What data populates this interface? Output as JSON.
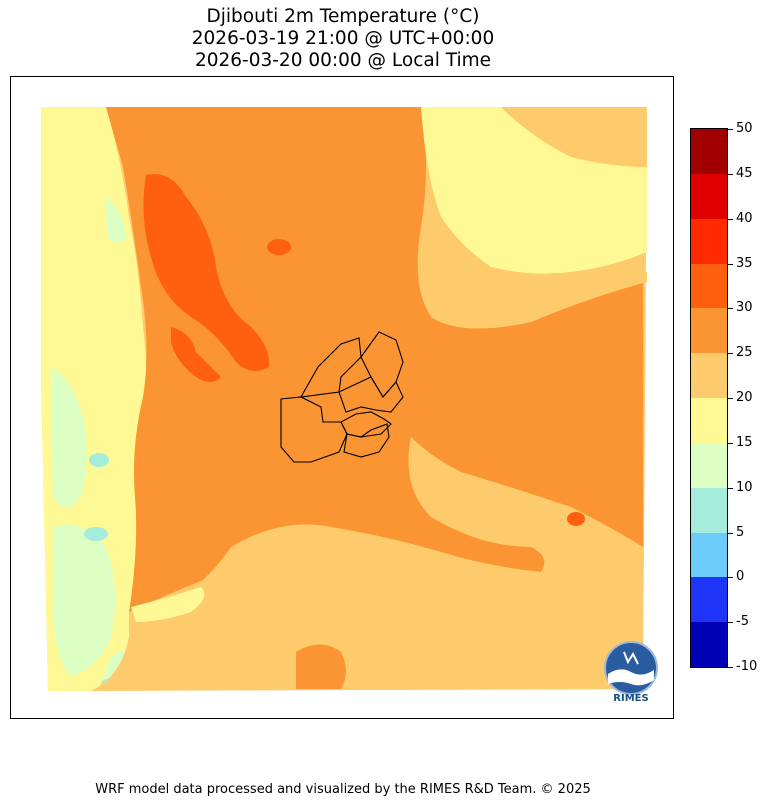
{
  "title": {
    "line1": "Djibouti 2m Temperature (°C)",
    "line2": "2026-03-19 21:00 @ UTC+00:00",
    "line3": "2026-03-20 00:00 @ Local Time"
  },
  "colorbar": {
    "labels": [
      "50",
      "45",
      "40",
      "35",
      "30",
      "25",
      "20",
      "15",
      "10",
      "5",
      "0",
      "-5",
      "-10"
    ],
    "colors": [
      "#a00000",
      "#e00000",
      "#ff2a00",
      "#ff6010",
      "#fb9432",
      "#fecb6c",
      "#fef995",
      "#dcffc4",
      "#a6ecdc",
      "#6ccbfa",
      "#1e34f6",
      "#0000b4"
    ]
  },
  "map": {
    "legend_colors": {
      "c10_15": "#a6ecdc",
      "c15_20": "#dcffc4",
      "c20_25": "#fef995",
      "c25_30": "#fecb6c",
      "c30_35": "#fb9432",
      "c35_40": "#ff6010"
    }
  },
  "logo": {
    "text": "RIMES"
  },
  "footer": {
    "text": "WRF model data processed and visualized by the RIMES R&D Team. © 2025"
  }
}
